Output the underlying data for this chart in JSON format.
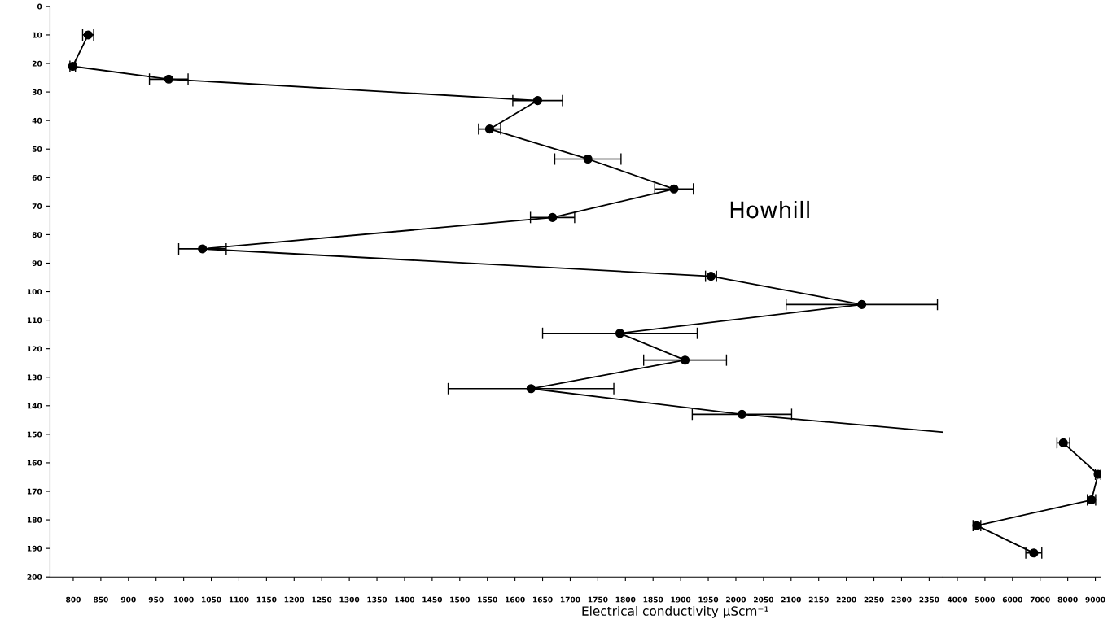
{
  "chart_data": [
    {
      "type": "line",
      "xlabel": "Electrical conductivity μScm⁻¹",
      "annotations": [
        "Howhill"
      ],
      "x": [
        827,
        799,
        973,
        1641,
        1554,
        1732,
        1888,
        1668,
        1034,
        1955,
        2228,
        1790,
        1908,
        1629,
        2011
      ],
      "values": [
        10,
        21,
        25.5,
        33,
        43,
        53.5,
        64,
        74,
        85,
        94.6,
        104.5,
        114.6,
        124,
        134,
        143
      ],
      "xerrors": [
        10,
        5,
        35,
        45,
        20,
        60,
        35,
        40,
        43,
        10,
        137,
        140,
        75,
        150,
        90
      ],
      "color": "#000000",
      "marker": "circle",
      "line_style": "solid",
      "grid": false,
      "legend": false,
      "xlim": [
        758,
        2375
      ],
      "xticks": [
        800,
        850,
        900,
        950,
        1000,
        1050,
        1100,
        1150,
        1200,
        1250,
        1300,
        1350,
        1400,
        1450,
        1500,
        1550,
        1600,
        1650,
        1700,
        1750,
        1800,
        1850,
        1900,
        1950,
        2000,
        2050,
        2100,
        2150,
        2200,
        2250,
        2300,
        2350
      ],
      "ylim": [
        200,
        0
      ],
      "yticks": [
        0,
        10,
        20,
        30,
        40,
        50,
        60,
        70,
        80,
        90,
        100,
        110,
        120,
        130,
        140,
        150,
        160,
        170,
        180,
        190,
        200
      ]
    },
    {
      "type": "line",
      "x": [
        7840,
        9100,
        8860,
        4710,
        6770
      ],
      "values": [
        153,
        164,
        173,
        182,
        191.6
      ],
      "xerrors": [
        230,
        100,
        150,
        140,
        290
      ],
      "color": "#000000",
      "marker": "circle",
      "line_style": "solid",
      "xlim": [
        3480,
        9200
      ],
      "xticks": [
        4000,
        5000,
        6000,
        7000,
        8000,
        9000
      ],
      "ylim": [
        200,
        0
      ],
      "tick_labels": "x"
    }
  ]
}
